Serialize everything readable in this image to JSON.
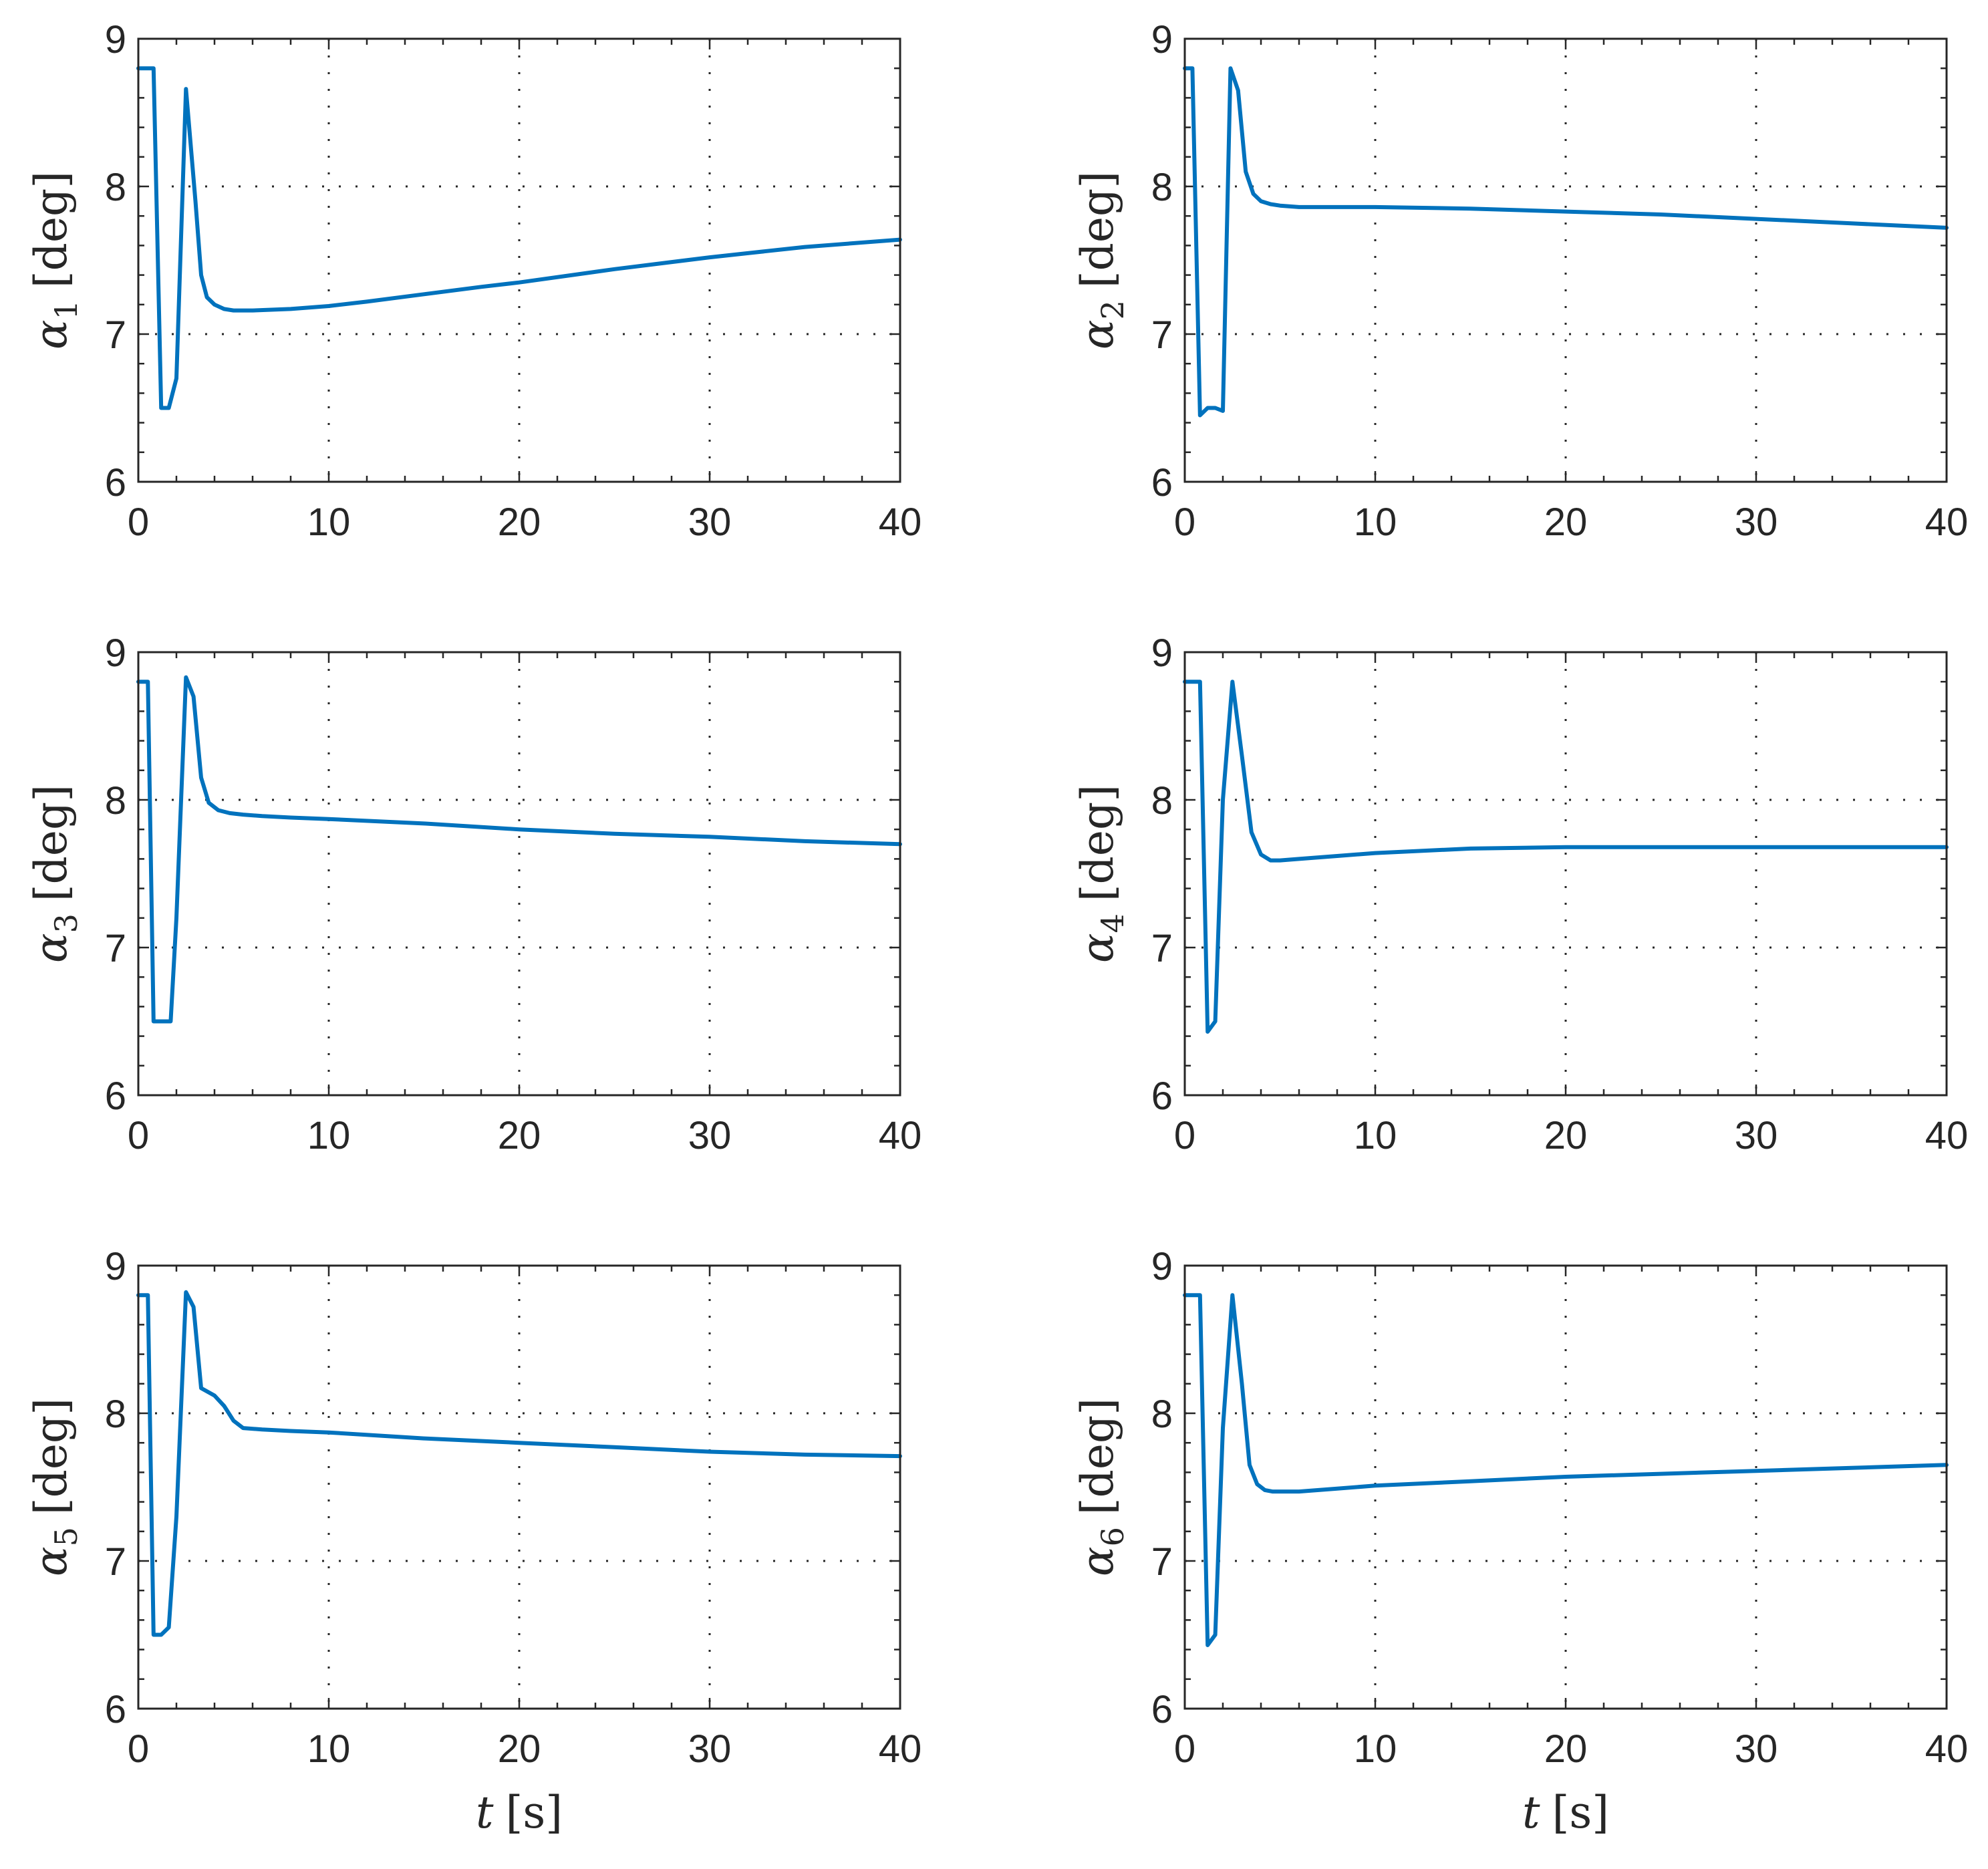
{
  "figure": {
    "line_color": "#0072bd",
    "axis_color": "#262626",
    "grid_color": "#262626"
  },
  "chart_data": [
    {
      "type": "line",
      "panel": "alpha1",
      "ylabel_symbol": "α",
      "ylabel_sub": "1",
      "ylabel_unit": "[deg]",
      "xlabel_symbol": "",
      "xlabel_unit": "",
      "xlim": [
        0,
        40
      ],
      "ylim": [
        6,
        9
      ],
      "xticks": [
        "0",
        "10",
        "20",
        "30",
        "40"
      ],
      "yticks": [
        "6",
        "7",
        "8",
        "9"
      ],
      "grid": true,
      "series": [
        {
          "name": "alpha1",
          "x": [
            0,
            0.8,
            1.2,
            1.6,
            2.0,
            2.5,
            3.0,
            3.3,
            3.6,
            4.0,
            4.5,
            5.0,
            6.0,
            8.0,
            10,
            12,
            15,
            18,
            20,
            25,
            30,
            35,
            40
          ],
          "y": [
            8.8,
            8.8,
            6.5,
            6.5,
            6.7,
            8.66,
            7.9,
            7.4,
            7.25,
            7.2,
            7.17,
            7.16,
            7.16,
            7.17,
            7.19,
            7.22,
            7.27,
            7.32,
            7.35,
            7.44,
            7.52,
            7.59,
            7.64
          ]
        }
      ]
    },
    {
      "type": "line",
      "panel": "alpha2",
      "ylabel_symbol": "α",
      "ylabel_sub": "2",
      "ylabel_unit": "[deg]",
      "xlabel_symbol": "",
      "xlabel_unit": "",
      "xlim": [
        0,
        40
      ],
      "ylim": [
        6,
        9
      ],
      "xticks": [
        "0",
        "10",
        "20",
        "30",
        "40"
      ],
      "yticks": [
        "6",
        "7",
        "8",
        "9"
      ],
      "grid": true,
      "series": [
        {
          "name": "alpha2",
          "x": [
            0,
            0.4,
            0.8,
            1.2,
            1.6,
            2.0,
            2.4,
            2.8,
            3.2,
            3.6,
            4.0,
            4.5,
            5.0,
            6.0,
            8.0,
            10,
            15,
            20,
            25,
            30,
            35,
            40
          ],
          "y": [
            8.8,
            8.8,
            6.45,
            6.5,
            6.5,
            6.48,
            8.8,
            8.65,
            8.1,
            7.95,
            7.9,
            7.88,
            7.87,
            7.86,
            7.86,
            7.86,
            7.85,
            7.83,
            7.81,
            7.78,
            7.75,
            7.72
          ]
        }
      ]
    },
    {
      "type": "line",
      "panel": "alpha3",
      "ylabel_symbol": "α",
      "ylabel_sub": "3",
      "ylabel_unit": "[deg]",
      "xlabel_symbol": "",
      "xlabel_unit": "",
      "xlim": [
        0,
        40
      ],
      "ylim": [
        6,
        9
      ],
      "xticks": [
        "0",
        "10",
        "20",
        "30",
        "40"
      ],
      "yticks": [
        "6",
        "7",
        "8",
        "9"
      ],
      "grid": true,
      "series": [
        {
          "name": "alpha3",
          "x": [
            0,
            0.5,
            0.8,
            1.2,
            1.7,
            2.0,
            2.5,
            2.9,
            3.3,
            3.7,
            4.2,
            4.8,
            5.5,
            6.5,
            8.0,
            10,
            15,
            20,
            25,
            30,
            35,
            40
          ],
          "y": [
            8.8,
            8.8,
            6.5,
            6.5,
            6.5,
            7.2,
            8.83,
            8.7,
            8.15,
            7.98,
            7.93,
            7.91,
            7.9,
            7.89,
            7.88,
            7.87,
            7.84,
            7.8,
            7.77,
            7.75,
            7.72,
            7.7
          ]
        }
      ]
    },
    {
      "type": "line",
      "panel": "alpha4",
      "ylabel_symbol": "α",
      "ylabel_sub": "4",
      "ylabel_unit": "[deg]",
      "xlabel_symbol": "",
      "xlabel_unit": "",
      "xlim": [
        0,
        40
      ],
      "ylim": [
        6,
        9
      ],
      "xticks": [
        "0",
        "10",
        "20",
        "30",
        "40"
      ],
      "yticks": [
        "6",
        "7",
        "8",
        "9"
      ],
      "grid": true,
      "series": [
        {
          "name": "alpha4",
          "x": [
            0,
            0.8,
            1.2,
            1.6,
            2.0,
            2.5,
            3.0,
            3.5,
            4.0,
            4.5,
            5.0,
            6.0,
            8.0,
            10,
            15,
            20,
            25,
            30,
            35,
            40
          ],
          "y": [
            8.8,
            8.8,
            6.43,
            6.5,
            8.0,
            8.8,
            8.3,
            7.78,
            7.63,
            7.59,
            7.59,
            7.6,
            7.62,
            7.64,
            7.67,
            7.68,
            7.68,
            7.68,
            7.68,
            7.68
          ]
        }
      ]
    },
    {
      "type": "line",
      "panel": "alpha5",
      "ylabel_symbol": "α",
      "ylabel_sub": "5",
      "ylabel_unit": "[deg]",
      "xlabel_symbol": "t",
      "xlabel_unit": "[s]",
      "xlim": [
        0,
        40
      ],
      "ylim": [
        6,
        9
      ],
      "xticks": [
        "0",
        "10",
        "20",
        "30",
        "40"
      ],
      "yticks": [
        "6",
        "7",
        "8",
        "9"
      ],
      "grid": true,
      "series": [
        {
          "name": "alpha5",
          "x": [
            0,
            0.5,
            0.8,
            1.2,
            1.6,
            2.0,
            2.5,
            2.9,
            3.3,
            4.0,
            4.5,
            5.0,
            5.5,
            6.5,
            8.0,
            10,
            15,
            20,
            25,
            30,
            35,
            40
          ],
          "y": [
            8.8,
            8.8,
            6.5,
            6.5,
            6.55,
            7.3,
            8.82,
            8.72,
            8.17,
            8.12,
            8.05,
            7.95,
            7.9,
            7.89,
            7.88,
            7.87,
            7.83,
            7.8,
            7.77,
            7.74,
            7.72,
            7.71
          ]
        }
      ]
    },
    {
      "type": "line",
      "panel": "alpha6",
      "ylabel_symbol": "α",
      "ylabel_sub": "6",
      "ylabel_unit": "[deg]",
      "xlabel_symbol": "t",
      "xlabel_unit": "[s]",
      "xlim": [
        0,
        40
      ],
      "ylim": [
        6,
        9
      ],
      "xticks": [
        "0",
        "10",
        "20",
        "30",
        "40"
      ],
      "yticks": [
        "6",
        "7",
        "8",
        "9"
      ],
      "grid": true,
      "series": [
        {
          "name": "alpha6",
          "x": [
            0,
            0.8,
            1.2,
            1.6,
            2.0,
            2.5,
            3.0,
            3.4,
            3.8,
            4.2,
            4.6,
            5.0,
            6.0,
            8.0,
            10,
            15,
            20,
            25,
            30,
            35,
            40
          ],
          "y": [
            8.8,
            8.8,
            6.43,
            6.5,
            7.9,
            8.8,
            8.2,
            7.65,
            7.52,
            7.48,
            7.47,
            7.47,
            7.47,
            7.49,
            7.51,
            7.54,
            7.57,
            7.59,
            7.61,
            7.63,
            7.65
          ]
        }
      ]
    }
  ]
}
